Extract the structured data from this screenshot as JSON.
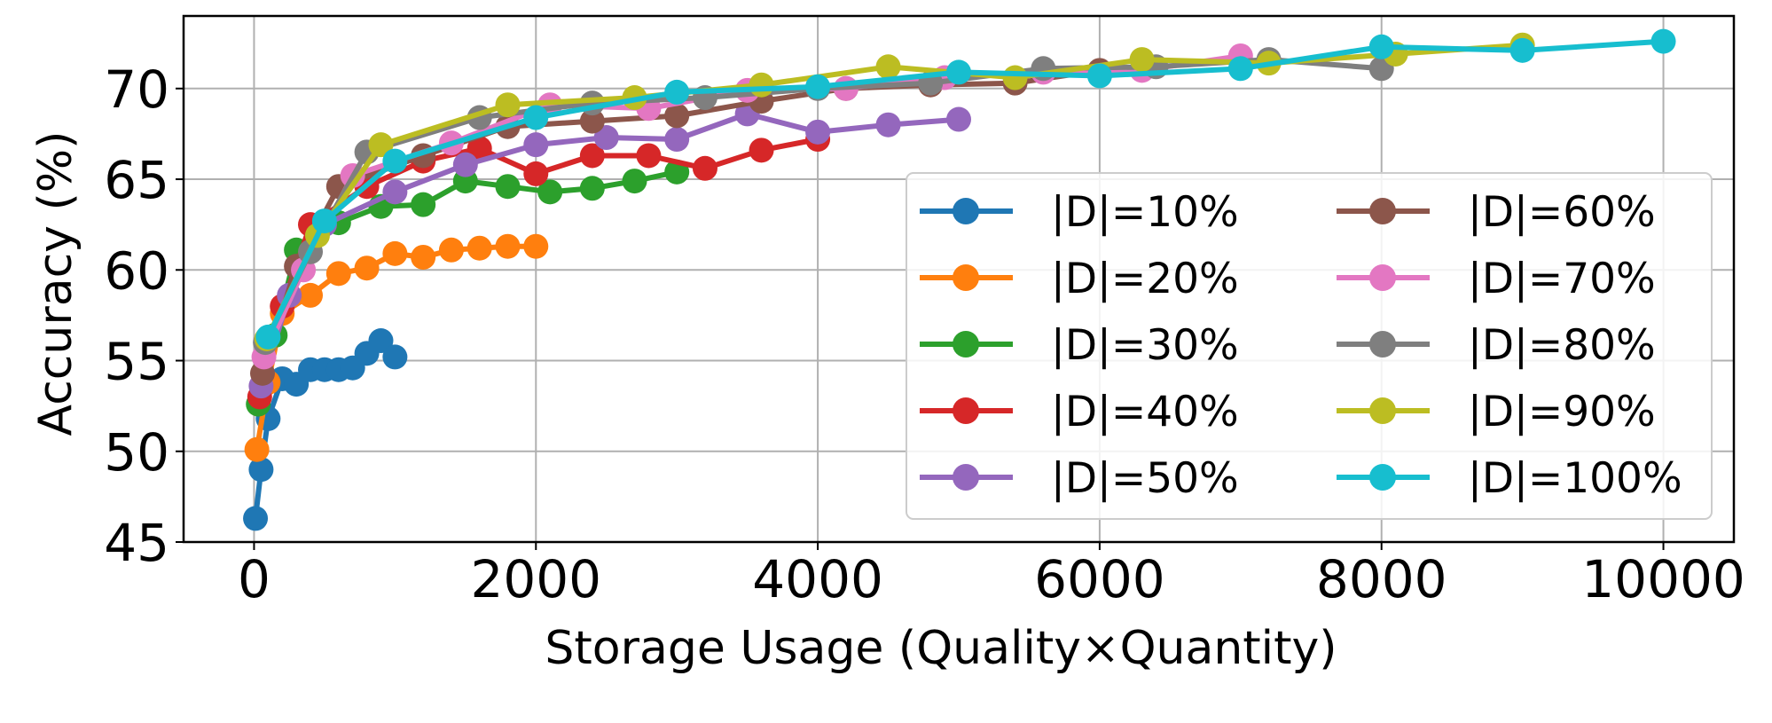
{
  "chart_data": {
    "type": "line",
    "xlabel": "Storage Usage (Quality×Quantity)",
    "ylabel": "Accuracy (%)",
    "xlim": [
      -500,
      10500
    ],
    "ylim": [
      45,
      74
    ],
    "xticks": [
      0,
      2000,
      4000,
      6000,
      8000,
      10000
    ],
    "yticks": [
      45,
      50,
      55,
      60,
      65,
      70
    ],
    "grid": true,
    "legend_position": "lower-right",
    "legend_columns": 2,
    "series": [
      {
        "name": "|D|=10%",
        "color": "#1f77b4",
        "points": [
          [
            10,
            46.3
          ],
          [
            50,
            49.0
          ],
          [
            100,
            51.8
          ],
          [
            200,
            54.0
          ],
          [
            300,
            53.7
          ],
          [
            400,
            54.5
          ],
          [
            500,
            54.5
          ],
          [
            600,
            54.5
          ],
          [
            700,
            54.6
          ],
          [
            800,
            55.4
          ],
          [
            900,
            56.1
          ],
          [
            1000,
            55.2
          ]
        ]
      },
      {
        "name": "|D|=20%",
        "color": "#ff7f0e",
        "points": [
          [
            20,
            50.1
          ],
          [
            100,
            53.8
          ],
          [
            200,
            57.6
          ],
          [
            400,
            58.6
          ],
          [
            600,
            59.8
          ],
          [
            800,
            60.1
          ],
          [
            1000,
            60.9
          ],
          [
            1200,
            60.7
          ],
          [
            1400,
            61.1
          ],
          [
            1600,
            61.2
          ],
          [
            1800,
            61.3
          ],
          [
            2000,
            61.3
          ]
        ]
      },
      {
        "name": "|D|=30%",
        "color": "#2ca02c",
        "points": [
          [
            30,
            52.6
          ],
          [
            150,
            56.4
          ],
          [
            300,
            61.1
          ],
          [
            600,
            62.6
          ],
          [
            900,
            63.5
          ],
          [
            1200,
            63.6
          ],
          [
            1500,
            64.9
          ],
          [
            1800,
            64.6
          ],
          [
            2100,
            64.3
          ],
          [
            2400,
            64.5
          ],
          [
            2700,
            64.9
          ],
          [
            3000,
            65.4
          ]
        ]
      },
      {
        "name": "|D|=40%",
        "color": "#d62728",
        "points": [
          [
            40,
            53.0
          ],
          [
            200,
            58.0
          ],
          [
            400,
            62.5
          ],
          [
            800,
            64.6
          ],
          [
            1200,
            66.0
          ],
          [
            1600,
            66.7
          ],
          [
            2000,
            65.3
          ],
          [
            2400,
            66.3
          ],
          [
            2800,
            66.3
          ],
          [
            3200,
            65.6
          ],
          [
            3600,
            66.6
          ],
          [
            4000,
            67.2
          ]
        ]
      },
      {
        "name": "|D|=50%",
        "color": "#9467bd",
        "points": [
          [
            50,
            53.6
          ],
          [
            250,
            58.6
          ],
          [
            500,
            62.5
          ],
          [
            1000,
            64.3
          ],
          [
            1500,
            65.8
          ],
          [
            2000,
            66.9
          ],
          [
            2500,
            67.3
          ],
          [
            3000,
            67.2
          ],
          [
            3500,
            68.6
          ],
          [
            4000,
            67.6
          ],
          [
            4500,
            68.0
          ],
          [
            5000,
            68.3
          ]
        ]
      },
      {
        "name": "|D|=60%",
        "color": "#8c564b",
        "points": [
          [
            60,
            54.3
          ],
          [
            300,
            60.2
          ],
          [
            600,
            64.6
          ],
          [
            1200,
            66.3
          ],
          [
            1800,
            67.9
          ],
          [
            2400,
            68.2
          ],
          [
            3000,
            68.5
          ],
          [
            3600,
            69.3
          ],
          [
            4200,
            70.0
          ],
          [
            4800,
            70.2
          ],
          [
            5400,
            70.3
          ],
          [
            6000,
            71.0
          ]
        ]
      },
      {
        "name": "|D|=70%",
        "color": "#e377c2",
        "points": [
          [
            70,
            55.2
          ],
          [
            350,
            60.0
          ],
          [
            700,
            65.2
          ],
          [
            1400,
            67.0
          ],
          [
            2100,
            69.1
          ],
          [
            2800,
            68.9
          ],
          [
            3500,
            69.9
          ],
          [
            4200,
            70.0
          ],
          [
            4900,
            70.6
          ],
          [
            5600,
            70.9
          ],
          [
            6300,
            71.0
          ],
          [
            7000,
            71.8
          ]
        ]
      },
      {
        "name": "|D|=80%",
        "color": "#7f7f7f",
        "points": [
          [
            80,
            56.0
          ],
          [
            400,
            61.0
          ],
          [
            800,
            66.5
          ],
          [
            1600,
            68.4
          ],
          [
            2400,
            69.2
          ],
          [
            3200,
            69.5
          ],
          [
            4000,
            70.0
          ],
          [
            4800,
            70.3
          ],
          [
            5600,
            71.1
          ],
          [
            6400,
            71.2
          ],
          [
            7200,
            71.6
          ],
          [
            8000,
            71.1
          ]
        ]
      },
      {
        "name": "|D|=90%",
        "color": "#bcbd22",
        "points": [
          [
            90,
            56.2
          ],
          [
            450,
            61.9
          ],
          [
            900,
            66.9
          ],
          [
            1800,
            69.1
          ],
          [
            2700,
            69.5
          ],
          [
            3600,
            70.2
          ],
          [
            4500,
            71.2
          ],
          [
            5400,
            70.6
          ],
          [
            6300,
            71.6
          ],
          [
            7200,
            71.4
          ],
          [
            8100,
            71.9
          ],
          [
            9000,
            72.4
          ]
        ]
      },
      {
        "name": "|D|=100%",
        "color": "#17becf",
        "points": [
          [
            100,
            56.3
          ],
          [
            500,
            62.7
          ],
          [
            1000,
            66.0
          ],
          [
            2000,
            68.4
          ],
          [
            3000,
            69.8
          ],
          [
            4000,
            70.1
          ],
          [
            5000,
            70.9
          ],
          [
            6000,
            70.7
          ],
          [
            7000,
            71.1
          ],
          [
            8000,
            72.3
          ],
          [
            9000,
            72.1
          ],
          [
            10000,
            72.6
          ]
        ]
      }
    ]
  }
}
